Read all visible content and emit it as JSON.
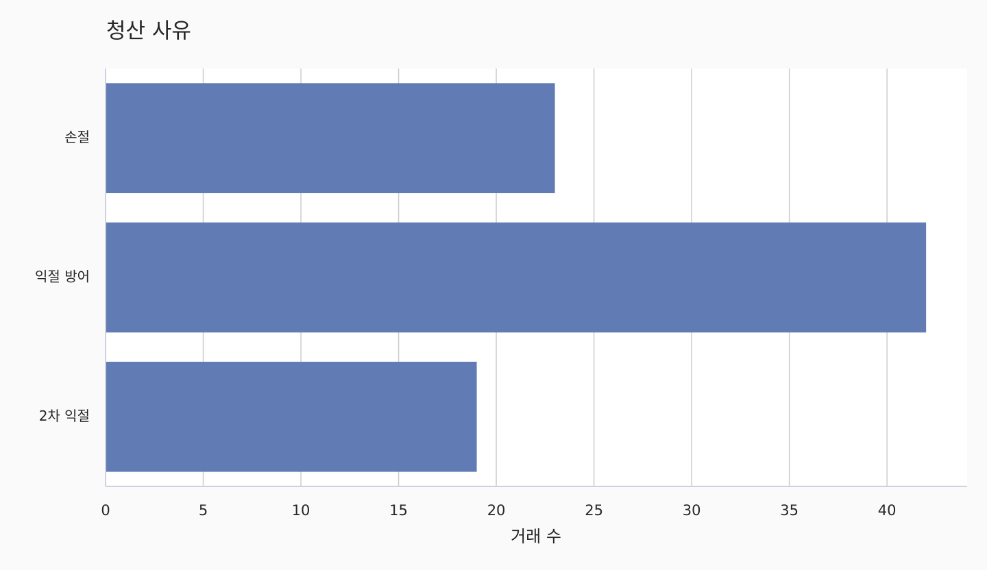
{
  "chart_data": {
    "type": "barh",
    "title": "청산 사유",
    "x_label": "거래 수",
    "categories": [
      "손절",
      "익절 방어",
      "2차 익절"
    ],
    "values": [
      23,
      42,
      19
    ],
    "color": "#617cb5",
    "xlim": [
      0,
      44.1
    ],
    "xticks": [
      0,
      5,
      10,
      15,
      20,
      25,
      30,
      35,
      40
    ],
    "grid": true
  }
}
